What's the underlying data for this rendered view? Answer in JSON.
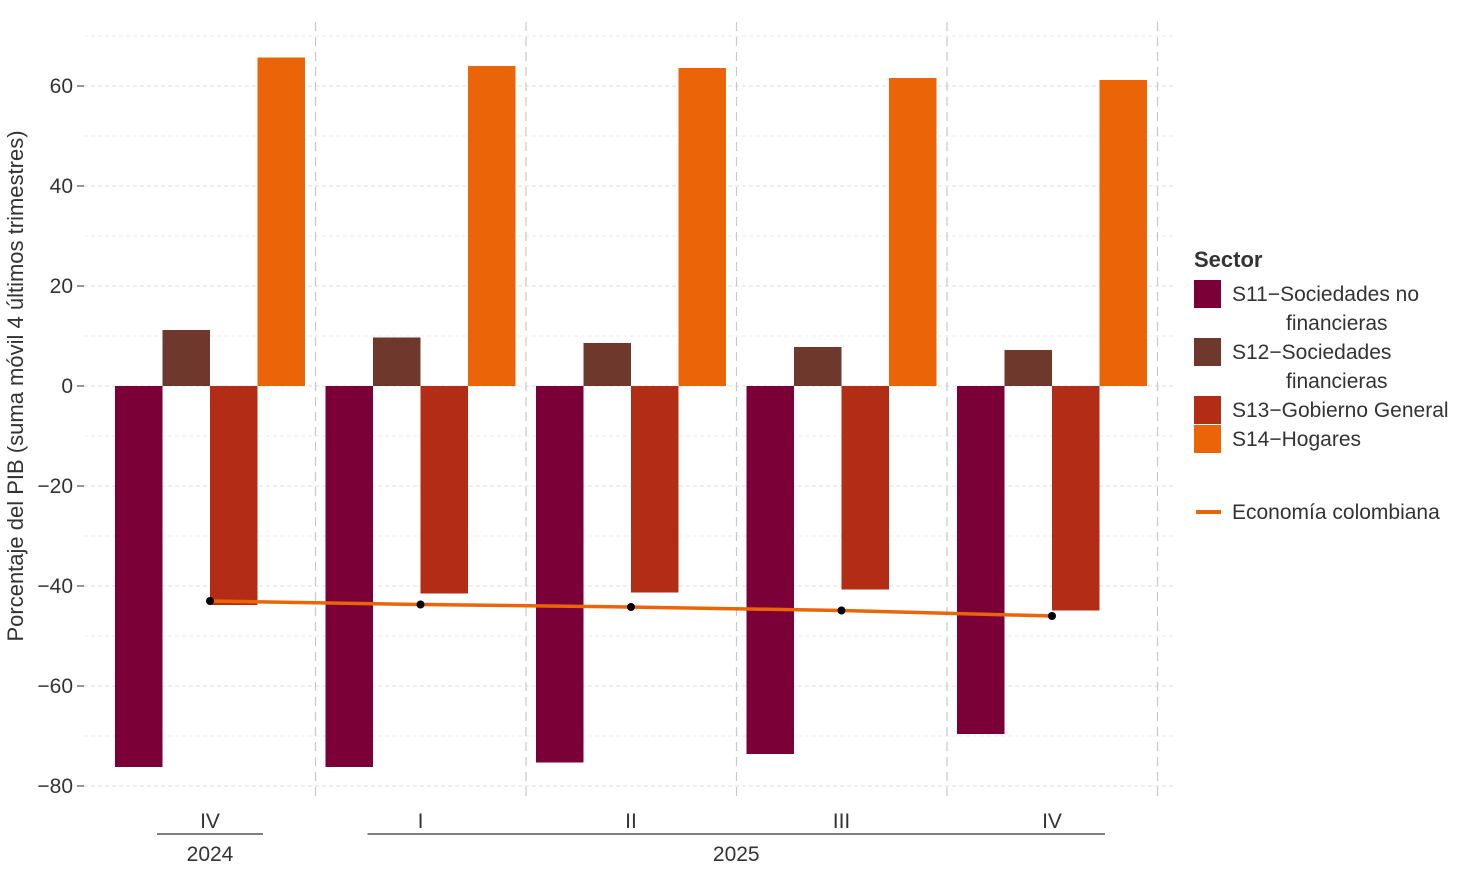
{
  "chart_data": {
    "type": "bar",
    "ylabel": "Porcentaje del PIB (suma móvil 4 últimos trimestres)",
    "xlabel": "",
    "ylim": [
      -82,
      70
    ],
    "yticks": [
      -80,
      -60,
      -40,
      -20,
      0,
      20,
      40,
      60
    ],
    "grid": true,
    "legend_placement": "right",
    "categories": [
      "IV",
      "I",
      "II",
      "III",
      "IV"
    ],
    "year_groups": [
      {
        "label": "2024",
        "span": [
          0,
          0
        ]
      },
      {
        "label": "2025",
        "span": [
          1,
          4
        ]
      }
    ],
    "legend_title": "Sector",
    "series": [
      {
        "name": "S11−Sociedades no financieras",
        "name_lines": [
          "S11−Sociedades no",
          "financieras"
        ],
        "color": "#7b0038",
        "values": [
          -76.2,
          -76.2,
          -75.3,
          -73.6,
          -69.6
        ]
      },
      {
        "name": "S12−Sociedades financieras",
        "name_lines": [
          "S12−Sociedades",
          "financieras"
        ],
        "color": "#6e382d",
        "values": [
          11.2,
          9.7,
          8.6,
          7.8,
          7.2
        ]
      },
      {
        "name": "S13−Gobierno General",
        "name_lines": [
          "S13−Gobierno General"
        ],
        "color": "#b32d16",
        "values": [
          -43.8,
          -41.5,
          -41.3,
          -40.7,
          -44.9
        ]
      },
      {
        "name": "S14−Hogares",
        "name_lines": [
          "S14−Hogares"
        ],
        "color": "#eb6508",
        "values": [
          65.7,
          64.0,
          63.6,
          61.6,
          61.2
        ]
      }
    ],
    "line_series": {
      "name": "Economía colombiana",
      "color": "#eb6508",
      "marker_color": "#000000",
      "values": [
        -43.0,
        -43.7,
        -44.2,
        -44.9,
        -46.0
      ]
    }
  }
}
